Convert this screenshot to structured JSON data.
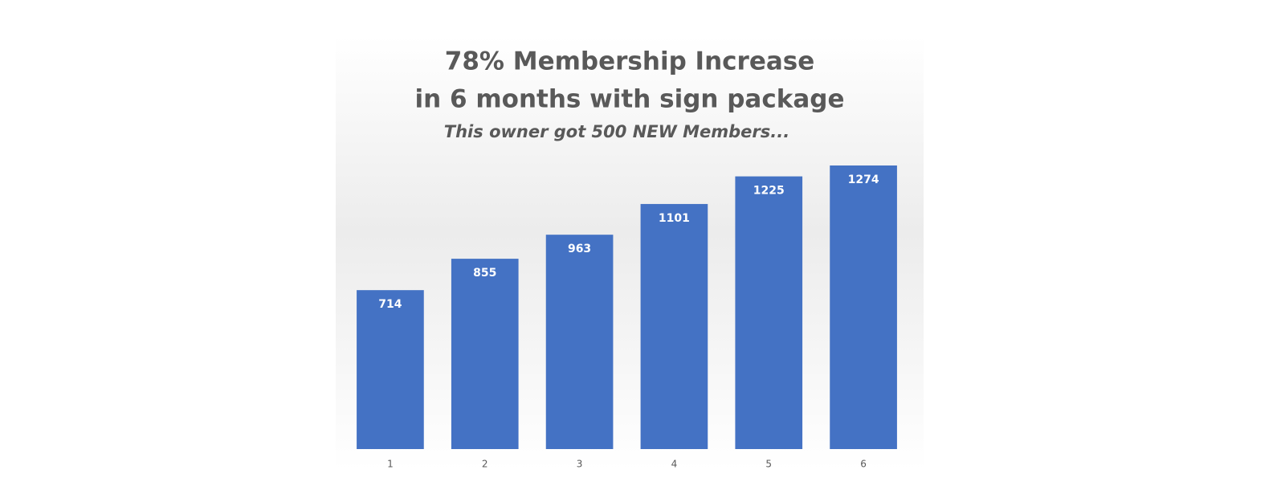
{
  "chart_data": {
    "type": "bar",
    "title": [
      "78% Membership Increase",
      "in 6 months with sign package"
    ],
    "subtitle": "This owner got 500 NEW Members...",
    "categories": [
      "1",
      "2",
      "3",
      "4",
      "5",
      "6"
    ],
    "values": [
      714,
      855,
      963,
      1101,
      1225,
      1274
    ],
    "color": "#4472c4"
  }
}
